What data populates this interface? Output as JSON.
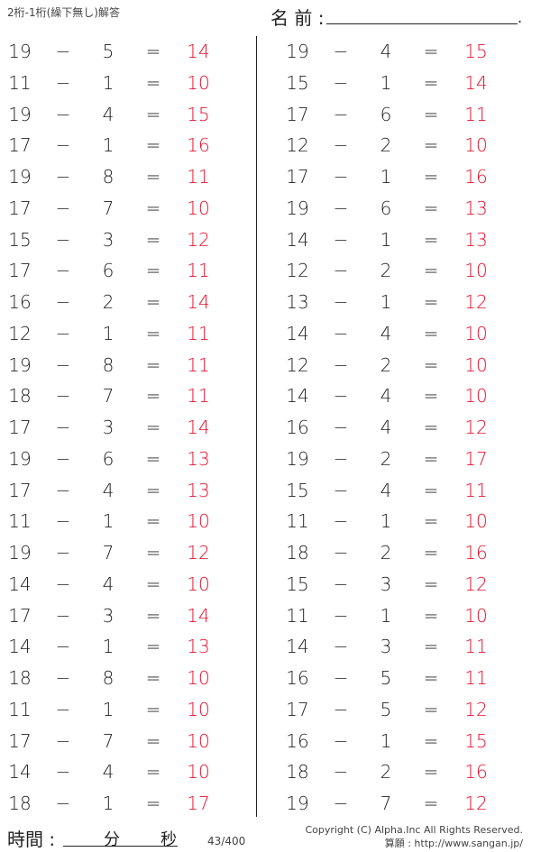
{
  "header": {
    "title": "2桁-1桁(繰下無し)解答",
    "name_label": "名 前 :",
    "name_end": "."
  },
  "operator": "−",
  "equals": "=",
  "answer_color": "#e8102e",
  "left": [
    [
      "19",
      "5",
      "14"
    ],
    [
      "11",
      "1",
      "10"
    ],
    [
      "19",
      "4",
      "15"
    ],
    [
      "17",
      "1",
      "16"
    ],
    [
      "19",
      "8",
      "11"
    ],
    [
      "17",
      "7",
      "10"
    ],
    [
      "15",
      "3",
      "12"
    ],
    [
      "17",
      "6",
      "11"
    ],
    [
      "16",
      "2",
      "14"
    ],
    [
      "12",
      "1",
      "11"
    ],
    [
      "19",
      "8",
      "11"
    ],
    [
      "18",
      "7",
      "11"
    ],
    [
      "17",
      "3",
      "14"
    ],
    [
      "19",
      "6",
      "13"
    ],
    [
      "17",
      "4",
      "13"
    ],
    [
      "11",
      "1",
      "10"
    ],
    [
      "19",
      "7",
      "12"
    ],
    [
      "14",
      "4",
      "10"
    ],
    [
      "17",
      "3",
      "14"
    ],
    [
      "14",
      "1",
      "13"
    ],
    [
      "18",
      "8",
      "10"
    ],
    [
      "11",
      "1",
      "10"
    ],
    [
      "17",
      "7",
      "10"
    ],
    [
      "14",
      "4",
      "10"
    ],
    [
      "18",
      "1",
      "17"
    ]
  ],
  "right": [
    [
      "19",
      "4",
      "15"
    ],
    [
      "15",
      "1",
      "14"
    ],
    [
      "17",
      "6",
      "11"
    ],
    [
      "12",
      "2",
      "10"
    ],
    [
      "17",
      "1",
      "16"
    ],
    [
      "19",
      "6",
      "13"
    ],
    [
      "14",
      "1",
      "13"
    ],
    [
      "12",
      "2",
      "10"
    ],
    [
      "13",
      "1",
      "12"
    ],
    [
      "14",
      "4",
      "10"
    ],
    [
      "12",
      "2",
      "10"
    ],
    [
      "14",
      "4",
      "10"
    ],
    [
      "16",
      "4",
      "12"
    ],
    [
      "19",
      "2",
      "17"
    ],
    [
      "15",
      "4",
      "11"
    ],
    [
      "11",
      "1",
      "10"
    ],
    [
      "18",
      "2",
      "16"
    ],
    [
      "15",
      "3",
      "12"
    ],
    [
      "11",
      "1",
      "10"
    ],
    [
      "14",
      "3",
      "11"
    ],
    [
      "16",
      "5",
      "11"
    ],
    [
      "17",
      "5",
      "12"
    ],
    [
      "16",
      "1",
      "15"
    ],
    [
      "18",
      "2",
      "16"
    ],
    [
      "19",
      "7",
      "12"
    ]
  ],
  "footer": {
    "time_label": "時間 :",
    "minutes": "分",
    "seconds": "秒",
    "page": "43/400",
    "copyright": "Copyright (C) Alpha.Inc All Rights Reserved.",
    "site": "算願 : http://www.sangan.jp/"
  }
}
